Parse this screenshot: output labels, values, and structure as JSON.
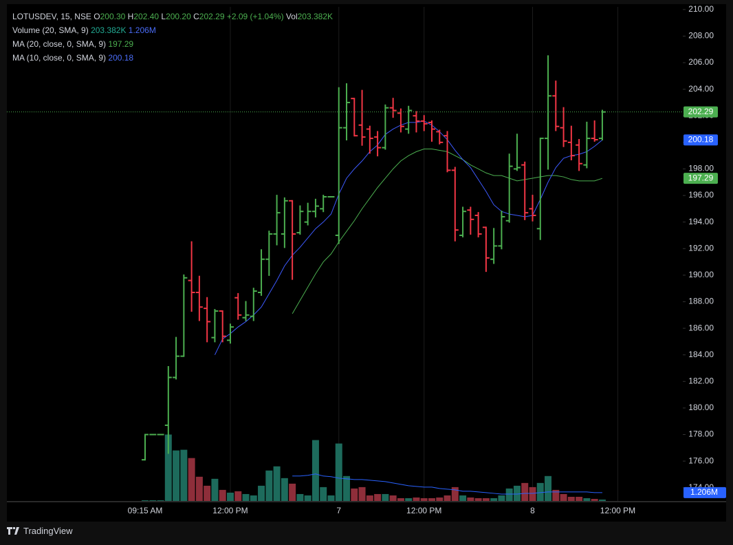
{
  "chart_data": {
    "type": "ohlc",
    "title": "LOTUSDEV, 15, NSE",
    "legend": {
      "open_label": "O",
      "open": "200.30",
      "high_label": "H",
      "high": "202.40",
      "low_label": "L",
      "low": "200.20",
      "close_label": "C",
      "close": "202.29",
      "change": "+2.09 (+1.04%)",
      "vol_label": "Vol",
      "vol": "203.382K"
    },
    "indicators": [
      {
        "name": "Volume (20, SMA, 9)",
        "readings": [
          "203.382K",
          "1.206M"
        ]
      },
      {
        "name": "MA (20, close, 0, SMA, 9)",
        "readings": [
          "197.29"
        ]
      },
      {
        "name": "MA (10, close, 0, SMA, 9)",
        "readings": [
          "200.18"
        ]
      }
    ],
    "categories": [
      "09:15 AM",
      null,
      null,
      null,
      null,
      null,
      null,
      null,
      null,
      null,
      null,
      "12:00 PM",
      null,
      null,
      null,
      null,
      null,
      null,
      null,
      null,
      null,
      null,
      null,
      null,
      null,
      "7",
      null,
      null,
      null,
      null,
      null,
      null,
      null,
      null,
      null,
      null,
      "12:00 PM",
      null,
      null,
      null,
      null,
      null,
      null,
      null,
      null,
      null,
      null,
      null,
      null,
      null,
      "8",
      null,
      null,
      null,
      null,
      null,
      null,
      null,
      null,
      null,
      null,
      "12:00 PM"
    ],
    "open": [
      176.1,
      178,
      178,
      178.7,
      182.3,
      183.9,
      189.6,
      188.7,
      187.5,
      185.3,
      187.3,
      185.1,
      188.3,
      186.8,
      186.9,
      188.7,
      191.2,
      193.1,
      193.1,
      195.6,
      193.2,
      194.0,
      194.8,
      195.0,
      195.9,
      193.0,
      201.1,
      203.3,
      201.3,
      201.0,
      200.4,
      199.6,
      202.6,
      202.2,
      201.0,
      202.0,
      201.6,
      201.5,
      200.8,
      200.5,
      197.9,
      193.0,
      194.9,
      194.5,
      193.6,
      191.2,
      192.2,
      194.1,
      198.0,
      198.3,
      195.0,
      193.5,
      200.3,
      203.5,
      201.1,
      200.0,
      199.8,
      198.3,
      200.3,
      200.3,
      null,
      null
    ],
    "high": [
      178,
      178,
      178,
      183.1,
      185.3,
      190.0,
      192.5,
      189.9,
      188.3,
      187.4,
      187.3,
      186.3,
      188.6,
      188.0,
      189.0,
      191.9,
      193.3,
      196.0,
      195.8,
      195.6,
      195.2,
      195.4,
      195.7,
      196.0,
      195.9,
      204.1,
      204.4,
      203.3,
      203.9,
      201.2,
      200.8,
      202.8,
      203.3,
      202.5,
      202.7,
      202.3,
      202.0,
      201.6,
      200.9,
      200.8,
      198.1,
      195.1,
      195.1,
      194.7,
      193.6,
      193.5,
      194.8,
      199.1,
      200.6,
      198.5,
      196.0,
      200.3,
      206.5,
      204.6,
      202.6,
      201.2,
      200.2,
      201.5,
      201.6,
      202.4,
      null,
      null
    ],
    "low": [
      176.1,
      178,
      178,
      176.6,
      182.2,
      183.9,
      187.3,
      186.6,
      185.0,
      185.0,
      185.0,
      184.9,
      186.7,
      186.6,
      186.6,
      188.5,
      190.0,
      192.3,
      192.1,
      189.7,
      193.1,
      193.8,
      194.4,
      194.8,
      195.9,
      192.4,
      200.2,
      200.5,
      199.8,
      199.2,
      199.0,
      199.5,
      201.9,
      200.8,
      200.7,
      200.8,
      200.9,
      200.1,
      199.9,
      197.8,
      192.6,
      192.9,
      193.1,
      192.9,
      190.3,
      190.9,
      192.0,
      194.0,
      197.9,
      194.2,
      194.1,
      192.7,
      198.0,
      200.9,
      199.7,
      198.7,
      197.9,
      198.1,
      200.1,
      200.2,
      null,
      null
    ],
    "close": [
      178.0,
      178,
      178,
      182.3,
      183.9,
      189.8,
      188.7,
      187.6,
      186.5,
      187.3,
      185.4,
      186.1,
      187.0,
      187.0,
      188.8,
      191.2,
      193.1,
      194.7,
      195.6,
      193.1,
      194.8,
      194.8,
      195.2,
      195.9,
      195.9,
      201.1,
      203.0,
      200.5,
      200.4,
      200.3,
      199.6,
      202.6,
      202.4,
      201.2,
      202.4,
      201.6,
      201.4,
      201.0,
      200.0,
      197.9,
      193.4,
      194.8,
      194.2,
      193.1,
      191.3,
      192.2,
      194.4,
      198.2,
      198.1,
      194.7,
      194.5,
      200.3,
      203.5,
      201.2,
      200.1,
      199.0,
      198.4,
      200.3,
      200.2,
      202.29,
      null,
      null
    ],
    "up_color": "#4caf50",
    "down_color": "#f23645",
    "ylim": [
      173.0,
      210.2
    ],
    "yticks": [
      {
        "value": 174,
        "label": "174.00"
      },
      {
        "value": 176,
        "label": "176.00"
      },
      {
        "value": 178,
        "label": "178.00"
      },
      {
        "value": 180,
        "label": "180.00"
      },
      {
        "value": 182,
        "label": "182.00"
      },
      {
        "value": 184,
        "label": "184.00"
      },
      {
        "value": 186,
        "label": "186.00"
      },
      {
        "value": 188,
        "label": "188.00"
      },
      {
        "value": 190,
        "label": "190.00"
      },
      {
        "value": 192,
        "label": "192.00"
      },
      {
        "value": 194,
        "label": "194.00"
      },
      {
        "value": 196,
        "label": "196.00"
      },
      {
        "value": 198,
        "label": "198.00"
      },
      {
        "value": 200,
        "label": "200.00"
      },
      {
        "value": 202,
        "label": "202.00"
      },
      {
        "value": 204,
        "label": "204.00"
      },
      {
        "value": 206,
        "label": "206.00"
      },
      {
        "value": 208,
        "label": "208.00"
      },
      {
        "value": 210,
        "label": "210.00"
      }
    ],
    "grid": true,
    "series": [
      {
        "name": "MA (20, close, 0, SMA, 9)",
        "color": "#4caf50",
        "values": [
          null,
          null,
          null,
          null,
          null,
          null,
          null,
          null,
          null,
          null,
          null,
          null,
          null,
          null,
          null,
          null,
          null,
          null,
          null,
          187.1,
          188.1,
          189.1,
          190.1,
          191.0,
          191.6,
          192.5,
          193.3,
          194.1,
          195.0,
          195.8,
          196.6,
          197.3,
          198.0,
          198.6,
          199.0,
          199.3,
          199.5,
          199.5,
          199.4,
          199.3,
          199.0,
          198.7,
          198.3,
          198.0,
          197.7,
          197.5,
          197.5,
          197.3,
          197.1,
          197.2,
          197.3,
          197.4,
          197.5,
          197.5,
          197.4,
          197.2,
          197.1,
          197.1,
          197.1,
          197.29,
          null,
          null
        ]
      },
      {
        "name": "MA (10, close, 0, SMA, 9)",
        "color": "#3d5afe",
        "values": [
          null,
          null,
          null,
          null,
          null,
          null,
          null,
          null,
          null,
          184.0,
          185.2,
          185.6,
          186.1,
          186.5,
          187.0,
          187.6,
          188.6,
          189.6,
          190.7,
          191.5,
          192.1,
          192.8,
          193.5,
          194.0,
          194.6,
          196.1,
          197.3,
          198.0,
          198.6,
          199.3,
          199.8,
          200.6,
          201.0,
          201.3,
          201.5,
          201.5,
          201.6,
          201.3,
          200.8,
          200.2,
          199.4,
          198.7,
          198.1,
          197.2,
          196.3,
          195.3,
          194.8,
          194.6,
          194.5,
          194.4,
          194.5,
          195.7,
          197.0,
          198.1,
          198.8,
          199.0,
          199.1,
          199.3,
          199.7,
          200.18,
          null,
          null
        ]
      }
    ],
    "volume": {
      "ylim": [
        0,
        71.4
      ],
      "up_color": "#1d6b5c",
      "down_color": "#8e2e3a",
      "values": [
        0.1,
        0.1,
        0.1,
        9.6,
        7.3,
        7.4,
        6.2,
        3.5,
        2.2,
        3.2,
        1.6,
        1.2,
        1.4,
        1.0,
        0.8,
        2.2,
        4.4,
        5.0,
        3.3,
        2.5,
        1.0,
        0.8,
        8.8,
        2.0,
        0.8,
        8.3,
        3.6,
        1.8,
        2.0,
        0.8,
        1.0,
        1.0,
        0.8,
        0.4,
        0.4,
        0.5,
        0.4,
        0.4,
        0.5,
        0.8,
        2.0,
        0.8,
        0.5,
        0.4,
        0.4,
        0.4,
        0.8,
        1.8,
        2.2,
        2.6,
        2.0,
        2.6,
        3.6,
        1.6,
        1.0,
        0.6,
        0.6,
        0.4,
        0.3,
        0.203382,
        null,
        null
      ],
      "ma": {
        "color": "#2962ff",
        "values": [
          null,
          null,
          null,
          null,
          null,
          null,
          null,
          null,
          null,
          null,
          null,
          null,
          null,
          null,
          null,
          null,
          null,
          null,
          null,
          3.6,
          3.6,
          3.7,
          3.9,
          3.6,
          3.5,
          3.3,
          3.2,
          3.1,
          3.1,
          3.0,
          2.9,
          2.8,
          2.6,
          2.4,
          2.2,
          2.1,
          2.0,
          2.0,
          1.8,
          1.7,
          1.6,
          1.4,
          1.4,
          1.3,
          1.2,
          1.1,
          1.0,
          1.0,
          1.0,
          1.1,
          1.1,
          1.2,
          1.3,
          1.3,
          1.3,
          1.3,
          1.3,
          1.3,
          1.2,
          1.206,
          null,
          null
        ]
      }
    }
  },
  "branding": "TradingView"
}
